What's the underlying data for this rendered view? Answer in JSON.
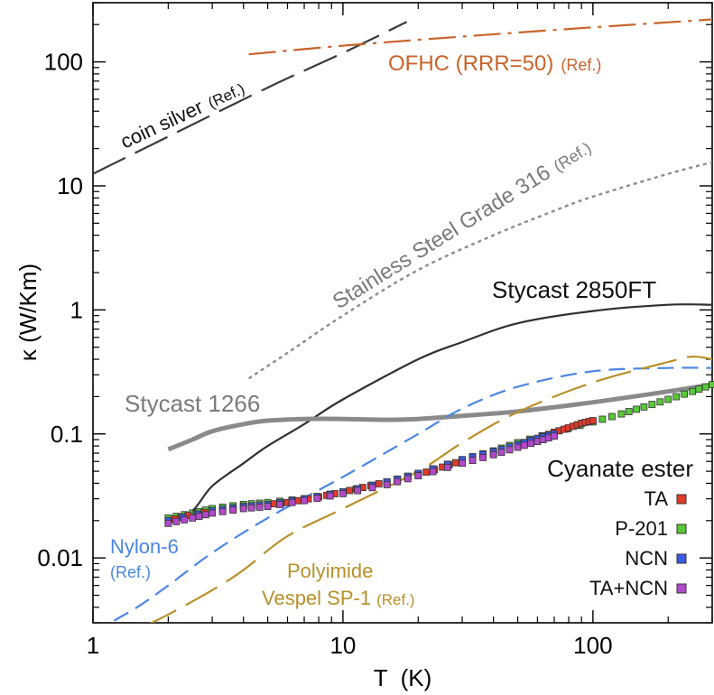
{
  "chart_data": {
    "type": "scatter",
    "xlabel": "T  (K)",
    "ylabel": "κ (W/Km)",
    "x_scale": "log",
    "y_scale": "log",
    "xlim": [
      1,
      300
    ],
    "ylim": [
      0.003,
      300
    ],
    "x_ticks": [
      {
        "value": 1,
        "label": "1"
      },
      {
        "value": 10,
        "label": "10"
      },
      {
        "value": 100,
        "label": "100"
      }
    ],
    "y_ticks": [
      {
        "value": 0.01,
        "label": "0.01"
      },
      {
        "value": 0.1,
        "label": "0.1"
      },
      {
        "value": 1,
        "label": "1"
      },
      {
        "value": 10,
        "label": "10"
      },
      {
        "value": 100,
        "label": "100"
      }
    ],
    "grid": false,
    "legend": {
      "title": "Cyanate ester",
      "placement": "bottom-right",
      "entries": [
        "TA",
        "P-201",
        "NCN",
        "TA+NCN"
      ]
    },
    "colors": {
      "coin_silver": "#3a3a3a",
      "ofhc": "#c8642a",
      "stainless": "#8c8c8c",
      "stycast2850": "#303030",
      "stycast1266": "#8a8a8a",
      "nylon": "#4a86e0",
      "polyimide": "#b8902a",
      "TA": "#e03a2a",
      "P-201": "#5ac83a",
      "NCN": "#3a5ae0",
      "TA+NCN": "#b04ac8"
    },
    "annotations": {
      "coin_silver": {
        "text": "coin silver",
        "ref": "(Ref.)"
      },
      "ofhc": {
        "text": "OFHC (RRR=50)",
        "ref": "(Ref.)"
      },
      "stainless": {
        "text": "Stainless Steel Grade 316",
        "ref": "(Ref.)"
      },
      "stycast2850": {
        "text": "Stycast 2850FT"
      },
      "stycast1266": {
        "text": "Stycast 1266"
      },
      "nylon": {
        "line1": "Nylon-6",
        "line2": "(Ref.)"
      },
      "polyimide": {
        "line1": "Polyimide",
        "line2": "Vespel SP-1",
        "ref": "(Ref.)"
      }
    },
    "series": [
      {
        "key": "coin_silver",
        "style": "longdash",
        "points": [
          [
            1,
            12.5
          ],
          [
            2,
            25
          ],
          [
            5,
            62
          ],
          [
            10,
            118
          ],
          [
            18,
            210
          ]
        ]
      },
      {
        "key": "ofhc",
        "style": "dashdot",
        "points": [
          [
            4.2,
            115
          ],
          [
            10,
            135
          ],
          [
            30,
            160
          ],
          [
            100,
            190
          ],
          [
            300,
            220
          ]
        ]
      },
      {
        "key": "stainless",
        "style": "dotted",
        "points": [
          [
            4.2,
            0.28
          ],
          [
            6,
            0.45
          ],
          [
            10,
            0.9
          ],
          [
            20,
            2.1
          ],
          [
            40,
            4.0
          ],
          [
            70,
            6.3
          ],
          [
            100,
            8.2
          ],
          [
            200,
            12.5
          ],
          [
            300,
            15.5
          ]
        ]
      },
      {
        "key": "stycast2850",
        "style": "solid",
        "points": [
          [
            2,
            0.019
          ],
          [
            2.5,
            0.024
          ],
          [
            3,
            0.038
          ],
          [
            4,
            0.058
          ],
          [
            5,
            0.08
          ],
          [
            7,
            0.12
          ],
          [
            10,
            0.19
          ],
          [
            20,
            0.4
          ],
          [
            30,
            0.55
          ],
          [
            50,
            0.78
          ],
          [
            100,
            0.98
          ],
          [
            200,
            1.1
          ],
          [
            300,
            1.1
          ]
        ]
      },
      {
        "key": "stycast1266",
        "style": "thick",
        "points": [
          [
            2,
            0.075
          ],
          [
            2.5,
            0.09
          ],
          [
            3,
            0.105
          ],
          [
            4,
            0.12
          ],
          [
            5,
            0.128
          ],
          [
            7,
            0.132
          ],
          [
            10,
            0.132
          ],
          [
            15,
            0.13
          ],
          [
            20,
            0.132
          ],
          [
            30,
            0.14
          ],
          [
            50,
            0.152
          ],
          [
            100,
            0.18
          ],
          [
            200,
            0.22
          ],
          [
            300,
            0.25
          ]
        ]
      },
      {
        "key": "nylon",
        "style": "dashed",
        "points": [
          [
            1,
            0.0025
          ],
          [
            1.5,
            0.004
          ],
          [
            2,
            0.006
          ],
          [
            3,
            0.011
          ],
          [
            5,
            0.021
          ],
          [
            10,
            0.045
          ],
          [
            20,
            0.1
          ],
          [
            30,
            0.16
          ],
          [
            50,
            0.24
          ],
          [
            100,
            0.32
          ],
          [
            200,
            0.34
          ],
          [
            300,
            0.34
          ]
        ]
      },
      {
        "key": "polyimide",
        "style": "longdash",
        "points": [
          [
            1.6,
            0.0028
          ],
          [
            2,
            0.0035
          ],
          [
            3,
            0.0055
          ],
          [
            4,
            0.008
          ],
          [
            6,
            0.015
          ],
          [
            10,
            0.025
          ],
          [
            20,
            0.05
          ],
          [
            30,
            0.085
          ],
          [
            50,
            0.15
          ],
          [
            100,
            0.26
          ],
          [
            200,
            0.38
          ],
          [
            250,
            0.42
          ],
          [
            300,
            0.4
          ]
        ]
      }
    ],
    "markers": {
      "TA": [
        [
          2,
          0.02
        ],
        [
          2.4,
          0.022
        ],
        [
          3,
          0.024
        ],
        [
          4,
          0.026
        ],
        [
          5,
          0.027
        ],
        [
          6,
          0.028
        ],
        [
          8,
          0.031
        ],
        [
          10,
          0.034
        ],
        [
          12,
          0.037
        ],
        [
          15,
          0.041
        ],
        [
          20,
          0.047
        ],
        [
          25,
          0.054
        ],
        [
          30,
          0.061
        ],
        [
          40,
          0.07
        ],
        [
          50,
          0.082
        ],
        [
          60,
          0.092
        ],
        [
          70,
          0.103
        ],
        [
          80,
          0.112
        ],
        [
          90,
          0.122
        ],
        [
          100,
          0.128
        ]
      ],
      "P-201": [
        [
          2,
          0.021
        ],
        [
          2.5,
          0.023
        ],
        [
          3,
          0.025
        ],
        [
          4,
          0.027
        ],
        [
          5,
          0.028
        ],
        [
          7,
          0.03
        ],
        [
          10,
          0.034
        ],
        [
          15,
          0.041
        ],
        [
          20,
          0.048
        ],
        [
          30,
          0.062
        ],
        [
          40,
          0.073
        ],
        [
          50,
          0.085
        ],
        [
          70,
          0.103
        ],
        [
          100,
          0.125
        ],
        [
          130,
          0.145
        ],
        [
          160,
          0.165
        ],
        [
          200,
          0.19
        ],
        [
          250,
          0.22
        ],
        [
          300,
          0.25
        ]
      ],
      "NCN": [
        [
          2,
          0.02
        ],
        [
          3,
          0.024
        ],
        [
          4,
          0.026
        ],
        [
          5,
          0.027
        ],
        [
          7,
          0.03
        ],
        [
          10,
          0.034
        ],
        [
          15,
          0.041
        ],
        [
          20,
          0.048
        ],
        [
          30,
          0.062
        ],
        [
          40,
          0.072
        ],
        [
          50,
          0.082
        ],
        [
          60,
          0.092
        ],
        [
          70,
          0.1
        ]
      ],
      "TA+NCN": [
        [
          2,
          0.019
        ],
        [
          2.5,
          0.021
        ],
        [
          3,
          0.023
        ],
        [
          4,
          0.025
        ],
        [
          5,
          0.026
        ],
        [
          7,
          0.029
        ],
        [
          10,
          0.033
        ],
        [
          15,
          0.039
        ],
        [
          20,
          0.046
        ],
        [
          30,
          0.058
        ],
        [
          40,
          0.068
        ],
        [
          50,
          0.078
        ],
        [
          60,
          0.087
        ],
        [
          70,
          0.096
        ]
      ]
    }
  }
}
